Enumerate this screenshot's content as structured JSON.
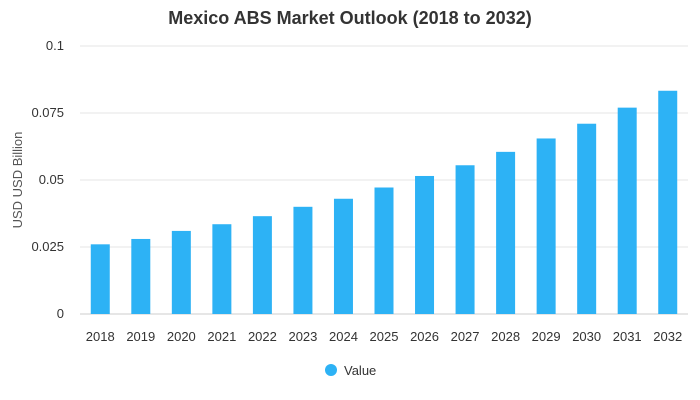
{
  "chart_data": {
    "type": "bar",
    "title": "Mexico ABS Market Outlook (2018 to 2032)",
    "xlabel": "",
    "ylabel": "USD USD Billion",
    "ylim": [
      0,
      0.1
    ],
    "yticks": [
      "0",
      "0.025",
      "0.05",
      "0.075",
      "0.1"
    ],
    "ytick_values": [
      0,
      0.025,
      0.05,
      0.075,
      0.1
    ],
    "categories": [
      "2018",
      "2019",
      "2020",
      "2021",
      "2022",
      "2023",
      "2024",
      "2025",
      "2026",
      "2027",
      "2028",
      "2029",
      "2030",
      "2031",
      "2032"
    ],
    "series": [
      {
        "name": "Value",
        "values": [
          0.026,
          0.028,
          0.031,
          0.0335,
          0.0365,
          0.04,
          0.043,
          0.0472,
          0.0515,
          0.0555,
          0.0605,
          0.0655,
          0.071,
          0.077,
          0.0833
        ]
      }
    ],
    "grid": true,
    "legend": "bottom-center",
    "colors": {
      "bar": "#2db2f5",
      "grid": "#e6e6e6",
      "axis": "#cccccc"
    }
  }
}
